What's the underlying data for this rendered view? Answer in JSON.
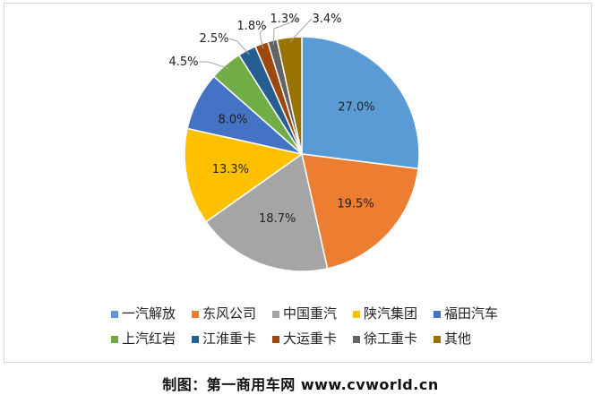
{
  "chart_data": {
    "type": "pie",
    "title": "",
    "categories": [
      "一汽解放",
      "东风公司",
      "中国重汽",
      "陕汽集团",
      "福田汽车",
      "上汽红岩",
      "江淮重卡",
      "大运重卡",
      "徐工重卡",
      "其他"
    ],
    "values": [
      27.0,
      19.5,
      18.7,
      13.3,
      8.0,
      4.5,
      2.5,
      1.8,
      1.3,
      3.4
    ],
    "labels": [
      "27.0%",
      "19.5%",
      "18.7%",
      "13.3%",
      "8.0%",
      "4.5%",
      "2.5%",
      "1.8%",
      "1.3%",
      "3.4%"
    ],
    "colors": [
      "#5B9BD5",
      "#ED7D31",
      "#A5A5A5",
      "#FFC000",
      "#4472C4",
      "#70AD47",
      "#255E91",
      "#9E480E",
      "#636363",
      "#997300"
    ],
    "legend_position": "bottom",
    "start_angle_deg": 0,
    "direction": "clockwise"
  },
  "caption": "制图：第一商用车网 www.cvworld.cn"
}
